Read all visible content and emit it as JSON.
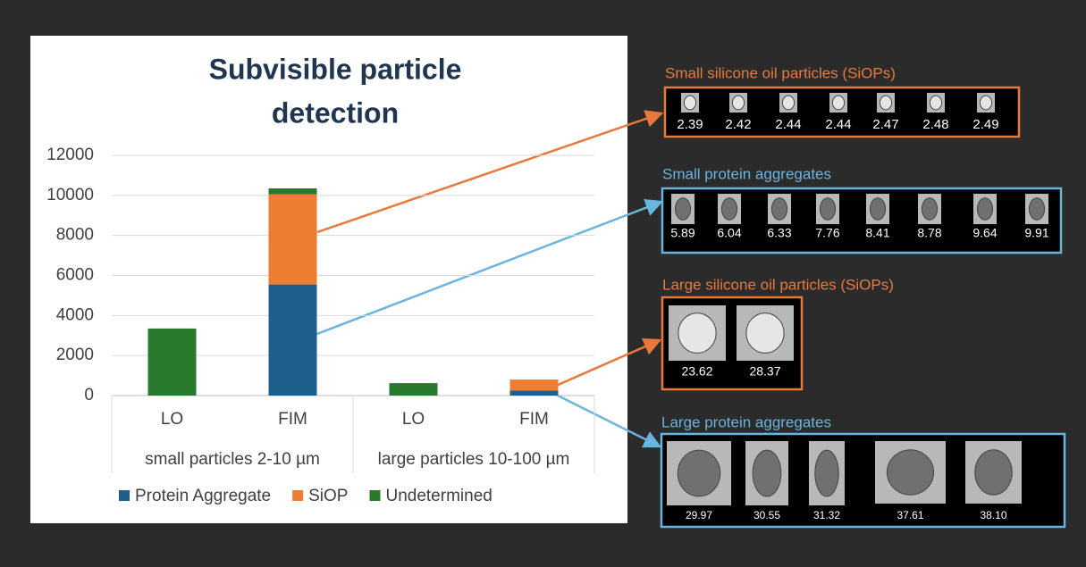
{
  "chart_data": {
    "type": "stacked_bar",
    "title": [
      "Subvisible particle",
      "detection"
    ],
    "categories": [
      "LO",
      "FIM",
      "LO",
      "FIM"
    ],
    "groups": [
      "small particles 2-10 µm",
      "large particles 10-100 µm"
    ],
    "series": [
      {
        "name": "Protein Aggregate",
        "color": "#1f5f8b",
        "values": [
          0,
          5550,
          0,
          250
        ]
      },
      {
        "name": "SiOP",
        "color": "#ed7d31",
        "values": [
          0,
          4500,
          0,
          550
        ]
      },
      {
        "name": "Undetermined",
        "color": "#2a7a2e",
        "values": [
          3350,
          300,
          620,
          0
        ]
      }
    ],
    "ylim": [
      0,
      12000
    ],
    "yticks": [
      0,
      2000,
      4000,
      6000,
      8000,
      10000,
      12000
    ],
    "grid": true,
    "legend": "bottom"
  },
  "panels": [
    {
      "title": "Small silicone oil particles (SiOPs)",
      "color": "#e8793a",
      "labels": [
        "2.39",
        "2.42",
        "2.44",
        "2.44",
        "2.47",
        "2.48",
        "2.49"
      ]
    },
    {
      "title": "Small protein aggregates",
      "color": "#6ab4e0",
      "labels": [
        "5.89",
        "6.04",
        "6.33",
        "7.76",
        "8.41",
        "8.78",
        "9.64",
        "9.91"
      ]
    },
    {
      "title": "Large silicone oil particles (SiOPs)",
      "color": "#e8793a",
      "labels": [
        "23.62",
        "28.37"
      ]
    },
    {
      "title": "Large protein aggregates",
      "color": "#6ab4e0",
      "labels": [
        "29.97",
        "30.55",
        "31.32",
        "37.61",
        "38.10"
      ]
    }
  ]
}
